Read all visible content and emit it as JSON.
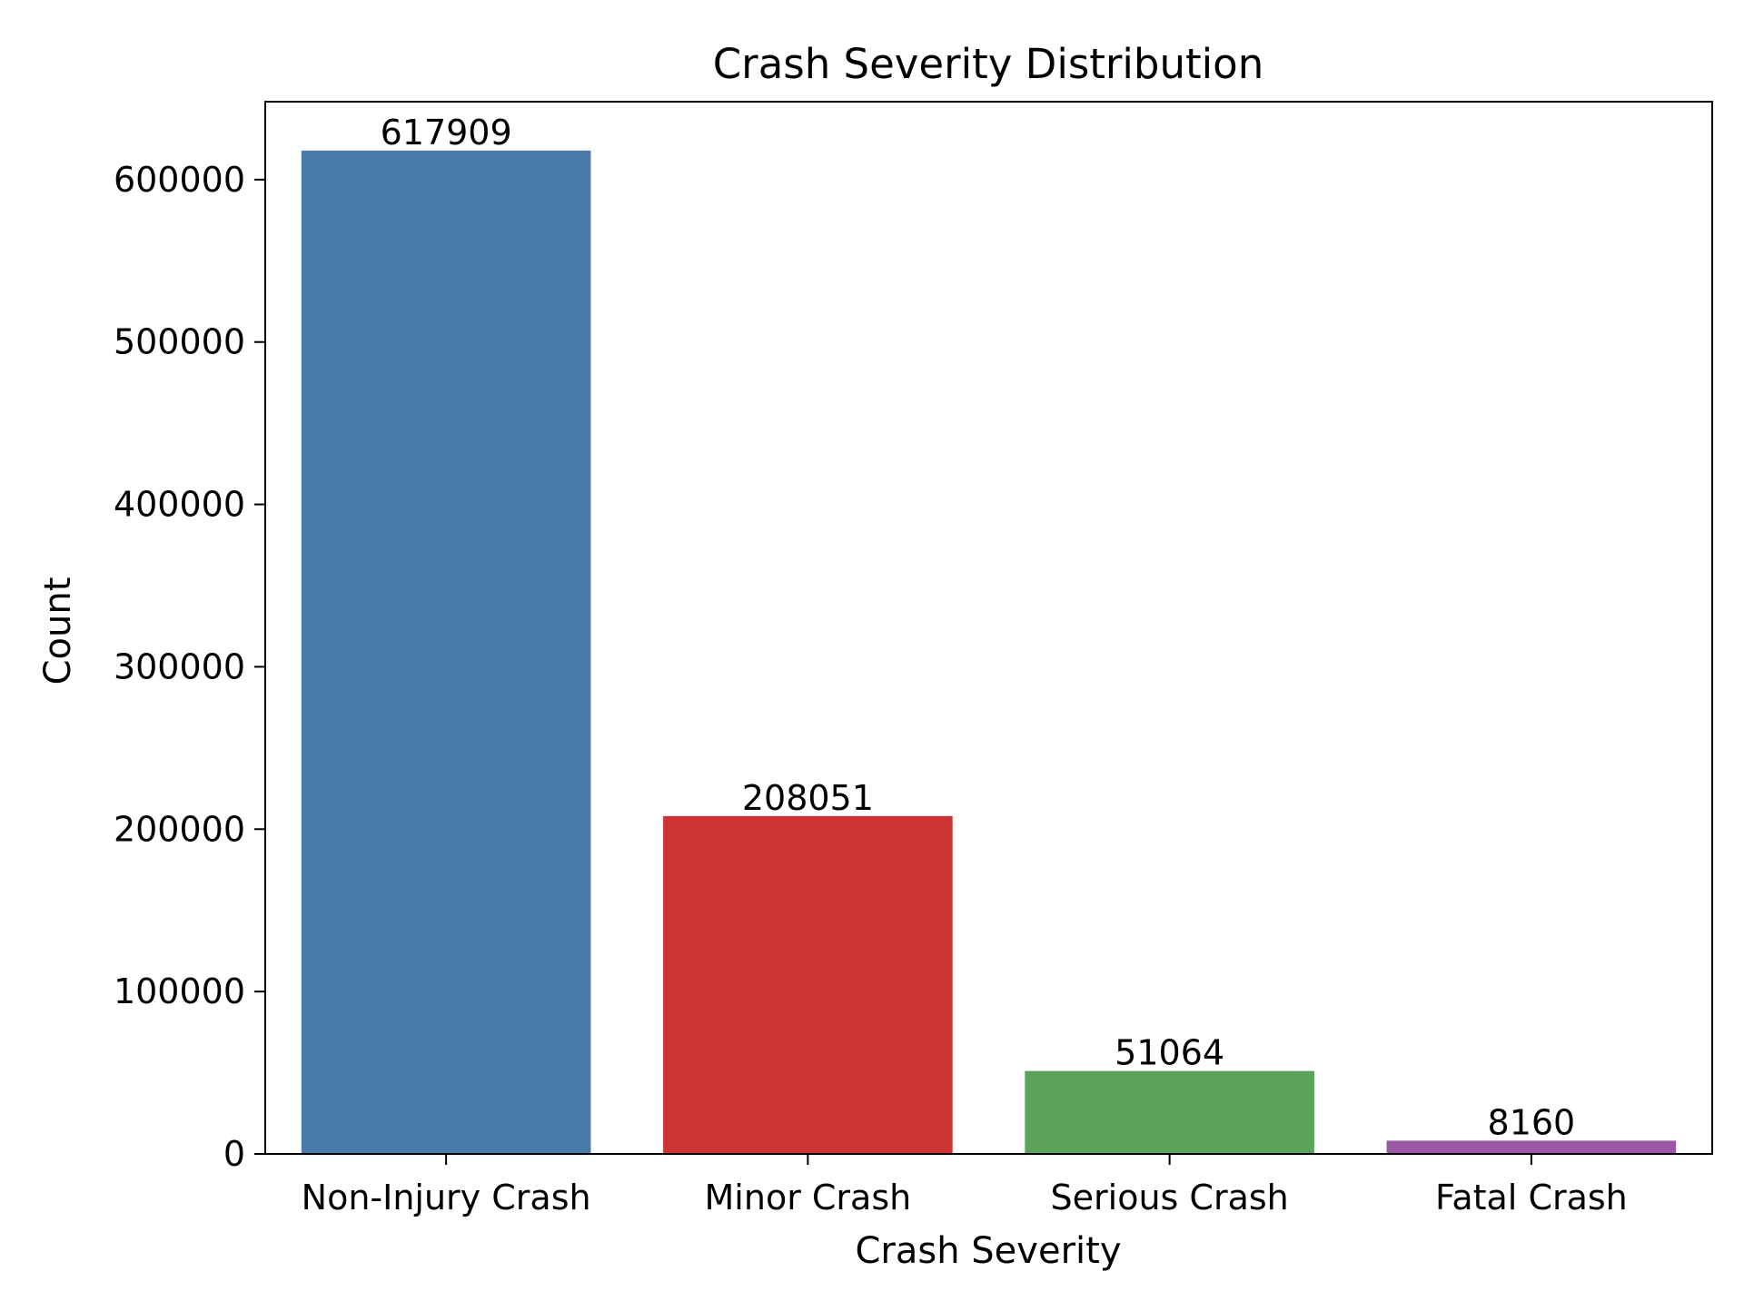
{
  "chart_data": {
    "type": "bar",
    "title": "Crash Severity Distribution",
    "xlabel": "Crash Severity",
    "ylabel": "Count",
    "categories": [
      "Non-Injury Crash",
      "Minor Crash",
      "Serious Crash",
      "Fatal Crash"
    ],
    "values": [
      617909,
      208051,
      51064,
      8160
    ],
    "data_labels": [
      "617909",
      "208051",
      "51064",
      "8160"
    ],
    "colors": [
      "#4a7cab",
      "#cc3335",
      "#5ba35a",
      "#9a57a4"
    ],
    "ylim": [
      0,
      648000
    ],
    "yticks": [
      0,
      100000,
      200000,
      300000,
      400000,
      500000,
      600000
    ],
    "ytick_labels": [
      "0",
      "100000",
      "200000",
      "300000",
      "400000",
      "500000",
      "600000"
    ],
    "grid": false,
    "legend": "none"
  }
}
